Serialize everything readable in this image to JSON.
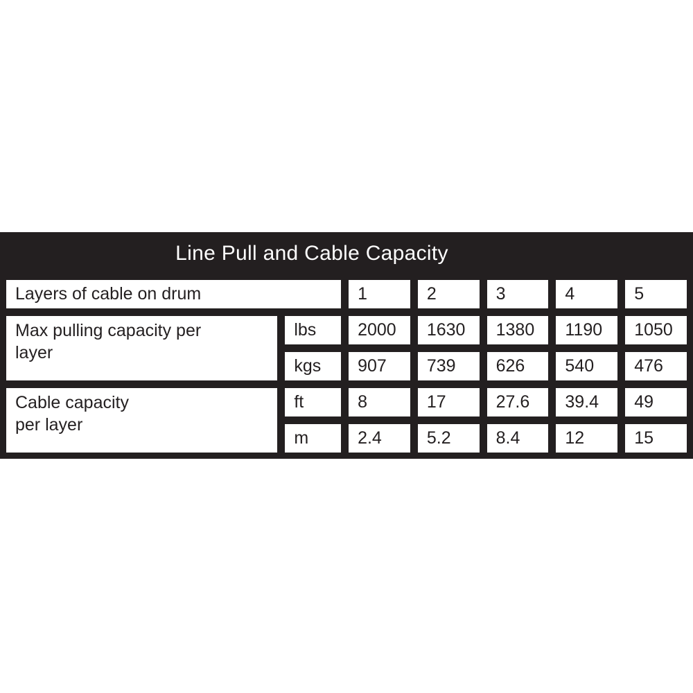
{
  "title": "Line Pull and Cable Capacity",
  "colors": {
    "table_background": "#231f20",
    "cell_background": "#ffffff",
    "title_text": "#ffffff",
    "cell_text": "#231f20",
    "cell_border": "#231f20",
    "page_background": "#ffffff"
  },
  "table": {
    "layers_row": {
      "label": "Layers of cable on drum",
      "values": [
        "1",
        "2",
        "3",
        "4",
        "5"
      ]
    },
    "groups": [
      {
        "label": "Max pulling capacity per\nlayer",
        "rows": [
          {
            "unit": "lbs",
            "values": [
              "2000",
              "1630",
              "1380",
              "1190",
              "1050"
            ]
          },
          {
            "unit": "kgs",
            "values": [
              "907",
              "739",
              "626",
              "540",
              "476"
            ]
          }
        ]
      },
      {
        "label": "Cable capacity\n per layer",
        "rows": [
          {
            "unit": "ft",
            "values": [
              "8",
              "17",
              "27.6",
              "39.4",
              "49"
            ]
          },
          {
            "unit": "m",
            "values": [
              "2.4",
              "5.2",
              "8.4",
              "12",
              "15"
            ]
          }
        ]
      }
    ]
  }
}
